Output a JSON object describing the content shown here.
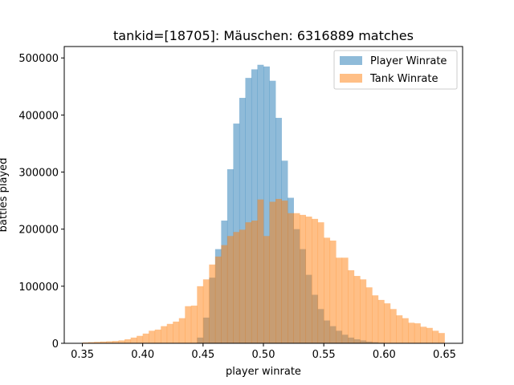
{
  "chart_data": {
    "type": "bar",
    "title": "tankid=[18705]: Mäuschen: 6316889 matches",
    "xlabel": "player winrate",
    "ylabel": "battles played",
    "xlim": [
      0.335,
      0.665
    ],
    "ylim": [
      0,
      520000
    ],
    "x_ticks": [
      "0.35",
      "0.40",
      "0.45",
      "0.50",
      "0.55",
      "0.60",
      "0.65"
    ],
    "y_ticks": [
      "0",
      "100000",
      "200000",
      "300000",
      "400000",
      "500000"
    ],
    "legend_position": "top-right",
    "grid": false,
    "series": [
      {
        "name": "Player Winrate",
        "color": "#1f77b4",
        "opacity": 0.5,
        "bins": [
          [
            0.35,
            0
          ],
          [
            0.355,
            0
          ],
          [
            0.36,
            0
          ],
          [
            0.365,
            0
          ],
          [
            0.37,
            0
          ],
          [
            0.375,
            0
          ],
          [
            0.38,
            0
          ],
          [
            0.385,
            0
          ],
          [
            0.39,
            0
          ],
          [
            0.395,
            0
          ],
          [
            0.4,
            0
          ],
          [
            0.405,
            0
          ],
          [
            0.41,
            0
          ],
          [
            0.415,
            0
          ],
          [
            0.42,
            0
          ],
          [
            0.425,
            0
          ],
          [
            0.43,
            0
          ],
          [
            0.435,
            0
          ],
          [
            0.44,
            0
          ],
          [
            0.445,
            10000
          ],
          [
            0.45,
            45000
          ],
          [
            0.455,
            115000
          ],
          [
            0.46,
            165000
          ],
          [
            0.465,
            215000
          ],
          [
            0.47,
            305000
          ],
          [
            0.475,
            385000
          ],
          [
            0.48,
            430000
          ],
          [
            0.485,
            465000
          ],
          [
            0.49,
            480000
          ],
          [
            0.495,
            488000
          ],
          [
            0.5,
            485000
          ],
          [
            0.505,
            460000
          ],
          [
            0.51,
            395000
          ],
          [
            0.515,
            320000
          ],
          [
            0.52,
            255000
          ],
          [
            0.525,
            200000
          ],
          [
            0.53,
            165000
          ],
          [
            0.535,
            120000
          ],
          [
            0.54,
            85000
          ],
          [
            0.545,
            60000
          ],
          [
            0.55,
            40000
          ],
          [
            0.555,
            30000
          ],
          [
            0.56,
            22000
          ],
          [
            0.565,
            15000
          ],
          [
            0.57,
            10000
          ],
          [
            0.575,
            7000
          ],
          [
            0.58,
            5000
          ],
          [
            0.585,
            3000
          ],
          [
            0.59,
            2000
          ],
          [
            0.595,
            1000
          ],
          [
            0.6,
            0
          ],
          [
            0.605,
            0
          ],
          [
            0.61,
            0
          ],
          [
            0.615,
            0
          ],
          [
            0.62,
            0
          ],
          [
            0.625,
            0
          ],
          [
            0.63,
            0
          ],
          [
            0.635,
            0
          ],
          [
            0.64,
            0
          ],
          [
            0.645,
            0
          ]
        ]
      },
      {
        "name": "Tank Winrate",
        "color": "#ff7f0e",
        "opacity": 0.5,
        "bins": [
          [
            0.35,
            1500
          ],
          [
            0.355,
            2000
          ],
          [
            0.36,
            2500
          ],
          [
            0.365,
            3000
          ],
          [
            0.37,
            3500
          ],
          [
            0.375,
            4000
          ],
          [
            0.38,
            5000
          ],
          [
            0.385,
            7000
          ],
          [
            0.39,
            10000
          ],
          [
            0.395,
            13000
          ],
          [
            0.4,
            17000
          ],
          [
            0.405,
            22000
          ],
          [
            0.41,
            24000
          ],
          [
            0.415,
            30000
          ],
          [
            0.42,
            34000
          ],
          [
            0.425,
            38000
          ],
          [
            0.43,
            44000
          ],
          [
            0.435,
            65000
          ],
          [
            0.44,
            66000
          ],
          [
            0.445,
            100000
          ],
          [
            0.45,
            112000
          ],
          [
            0.455,
            138000
          ],
          [
            0.46,
            152000
          ],
          [
            0.465,
            172000
          ],
          [
            0.47,
            188000
          ],
          [
            0.475,
            195000
          ],
          [
            0.48,
            199000
          ],
          [
            0.485,
            212000
          ],
          [
            0.49,
            215000
          ],
          [
            0.495,
            252000
          ],
          [
            0.5,
            188000
          ],
          [
            0.505,
            248000
          ],
          [
            0.51,
            253000
          ],
          [
            0.515,
            250000
          ],
          [
            0.52,
            228000
          ],
          [
            0.525,
            228000
          ],
          [
            0.53,
            225000
          ],
          [
            0.535,
            222000
          ],
          [
            0.54,
            218000
          ],
          [
            0.545,
            212000
          ],
          [
            0.55,
            185000
          ],
          [
            0.555,
            180000
          ],
          [
            0.56,
            150000
          ],
          [
            0.565,
            150000
          ],
          [
            0.57,
            128000
          ],
          [
            0.575,
            118000
          ],
          [
            0.58,
            112000
          ],
          [
            0.585,
            98000
          ],
          [
            0.59,
            84000
          ],
          [
            0.595,
            76000
          ],
          [
            0.6,
            70000
          ],
          [
            0.605,
            60000
          ],
          [
            0.61,
            49000
          ],
          [
            0.615,
            44000
          ],
          [
            0.62,
            36000
          ],
          [
            0.625,
            35000
          ],
          [
            0.63,
            29000
          ],
          [
            0.635,
            27000
          ],
          [
            0.64,
            22000
          ],
          [
            0.645,
            18000
          ]
        ]
      }
    ]
  }
}
